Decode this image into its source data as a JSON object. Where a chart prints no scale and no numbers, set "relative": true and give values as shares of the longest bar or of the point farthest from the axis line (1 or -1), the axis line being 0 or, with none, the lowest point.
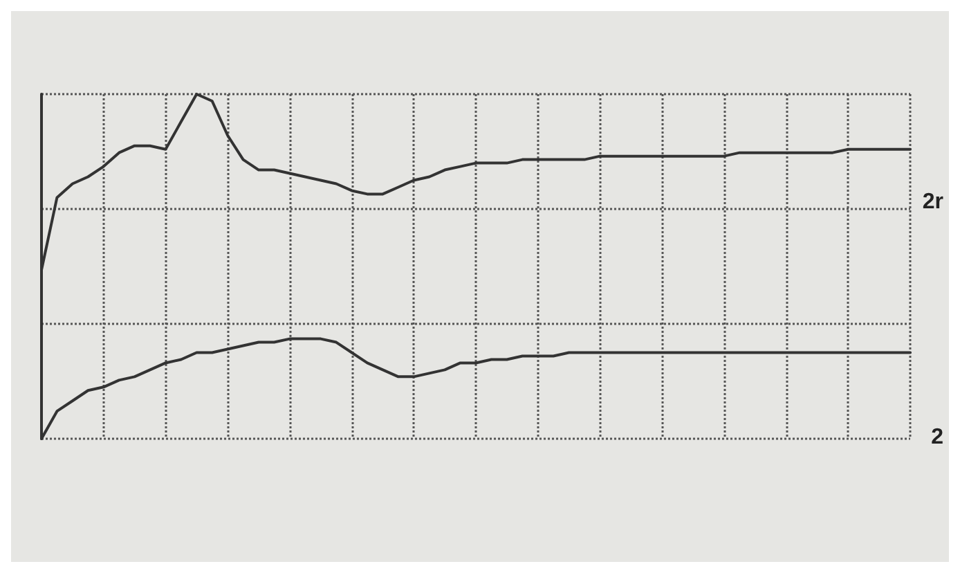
{
  "chart_data": {
    "type": "line",
    "relative": true,
    "grid": true,
    "marker": "none",
    "line_style": "solid",
    "categories": [
      null,
      null,
      null,
      null,
      null,
      null,
      null,
      null,
      null,
      null,
      null,
      null,
      null,
      null,
      null,
      null,
      null,
      null,
      null,
      null,
      null,
      null,
      null,
      null,
      null,
      null,
      null,
      null,
      null,
      null,
      null,
      null,
      null,
      null,
      null,
      null,
      null,
      null,
      null,
      null,
      null,
      null,
      null,
      null,
      null,
      null,
      null,
      null,
      null,
      null,
      null,
      null,
      null,
      null,
      null,
      null,
      null
    ],
    "series": [
      {
        "color": "#333333",
        "values": [
          0.49,
          0.7,
          0.74,
          0.76,
          0.79,
          0.83,
          0.85,
          0.85,
          0.84,
          0.92,
          1,
          0.98,
          0.88,
          0.81,
          0.78,
          0.78,
          0.77,
          0.76,
          0.75,
          0.74,
          0.72,
          0.71,
          0.71,
          0.73,
          0.75,
          0.76,
          0.78,
          0.79,
          0.8,
          0.8,
          0.8,
          0.81,
          0.81,
          0.81,
          0.81,
          0.81,
          0.82,
          0.82,
          0.82,
          0.82,
          0.82,
          0.82,
          0.82,
          0.82,
          0.82,
          0.83,
          0.83,
          0.83,
          0.83,
          0.83,
          0.83,
          0.83,
          0.84,
          0.84,
          0.84,
          0.84,
          0.84
        ]
      },
      {
        "color": "#333333",
        "values": [
          0,
          0.08,
          0.11,
          0.14,
          0.15,
          0.17,
          0.18,
          0.2,
          0.22,
          0.23,
          0.25,
          0.25,
          0.26,
          0.27,
          0.28,
          0.28,
          0.29,
          0.29,
          0.29,
          0.28,
          0.25,
          0.22,
          0.2,
          0.18,
          0.18,
          0.19,
          0.2,
          0.22,
          0.22,
          0.23,
          0.23,
          0.24,
          0.24,
          0.24,
          0.25,
          0.25,
          0.25,
          0.25,
          0.25,
          0.25,
          0.25,
          0.25,
          0.25,
          0.25,
          0.25,
          0.25,
          0.25,
          0.25,
          0.25,
          0.25,
          0.25,
          0.25,
          0.25,
          0.25,
          0.25,
          0.25,
          0.25
        ]
      }
    ],
    "annotations": [
      "2r",
      "2"
    ]
  }
}
